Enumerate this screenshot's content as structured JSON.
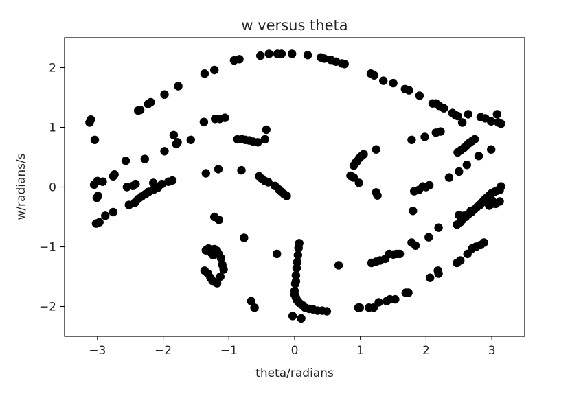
{
  "chart_data": {
    "type": "scatter",
    "title": "w versus theta",
    "xlabel": "theta/radians",
    "ylabel": "w/radians/s",
    "xlim": [
      -3.5,
      3.5
    ],
    "ylim": [
      -2.5,
      2.5
    ],
    "xticks": [
      -3,
      -2,
      -1,
      0,
      1,
      2,
      3
    ],
    "yticks": [
      -2,
      -1,
      0,
      1,
      2
    ],
    "xtick_labels": [
      "−3",
      "−2",
      "−1",
      "0",
      "1",
      "2",
      "3"
    ],
    "ytick_labels": [
      "−2",
      "−1",
      "0",
      "1",
      "2"
    ],
    "grid": false,
    "marker_color": "#000000",
    "series": [
      {
        "points": [
          [
            -3.12,
            1.08
          ],
          [
            -3.1,
            1.13
          ],
          [
            -3.04,
            0.79
          ],
          [
            -3.05,
            0.04
          ],
          [
            -3.0,
            0.1
          ],
          [
            -2.92,
            0.09
          ],
          [
            -3.01,
            -0.18
          ],
          [
            -2.99,
            -0.15
          ],
          [
            -3.02,
            -0.61
          ],
          [
            -2.97,
            -0.59
          ],
          [
            -2.88,
            -0.48
          ],
          [
            -2.76,
            -0.42
          ],
          [
            -2.74,
            0.21
          ],
          [
            -2.76,
            0.18
          ],
          [
            -2.57,
            0.44
          ],
          [
            -2.55,
            0.0
          ],
          [
            -2.46,
            0.02
          ],
          [
            -2.42,
            0.05
          ],
          [
            -2.52,
            -0.3
          ],
          [
            -2.43,
            -0.26
          ],
          [
            -2.38,
            -0.2
          ],
          [
            -2.33,
            -0.16
          ],
          [
            -2.27,
            -0.12
          ],
          [
            -2.22,
            -0.08
          ],
          [
            -2.15,
            -0.05
          ],
          [
            -2.08,
            -0.01
          ],
          [
            -2.28,
            0.47
          ],
          [
            -2.15,
            0.07
          ],
          [
            -2.02,
            0.05
          ],
          [
            -1.92,
            0.09
          ],
          [
            -1.86,
            0.11
          ],
          [
            -1.98,
            0.6
          ],
          [
            -2.38,
            1.28
          ],
          [
            -2.35,
            1.29
          ],
          [
            -2.23,
            1.39
          ],
          [
            -2.19,
            1.42
          ],
          [
            -1.98,
            1.55
          ],
          [
            -1.77,
            1.69
          ],
          [
            -1.84,
            0.87
          ],
          [
            -1.8,
            0.72
          ],
          [
            -1.78,
            0.75
          ],
          [
            -1.58,
            0.79
          ],
          [
            -1.38,
            1.09
          ],
          [
            -1.21,
            1.14
          ],
          [
            -1.14,
            1.14
          ],
          [
            -1.06,
            1.16
          ],
          [
            -1.37,
            1.9
          ],
          [
            -1.22,
            1.96
          ],
          [
            -0.92,
            2.12
          ],
          [
            -0.84,
            2.14
          ],
          [
            -0.52,
            2.2
          ],
          [
            -0.39,
            2.23
          ],
          [
            -0.26,
            2.23
          ],
          [
            -0.2,
            2.23
          ],
          [
            -0.04,
            2.23
          ],
          [
            -0.87,
            0.8
          ],
          [
            -0.8,
            0.8
          ],
          [
            -0.75,
            0.79
          ],
          [
            -0.69,
            0.78
          ],
          [
            -0.63,
            0.76
          ],
          [
            -0.56,
            0.75
          ],
          [
            -0.45,
            0.8
          ],
          [
            -0.43,
            0.96
          ],
          [
            -1.35,
            0.23
          ],
          [
            -1.16,
            0.3
          ],
          [
            -0.81,
            0.28
          ],
          [
            -0.54,
            0.18
          ],
          [
            -0.5,
            0.14
          ],
          [
            -0.45,
            0.1
          ],
          [
            -0.4,
            0.08
          ],
          [
            -0.3,
            0.02
          ],
          [
            -0.24,
            -0.04
          ],
          [
            -0.2,
            -0.08
          ],
          [
            -0.16,
            -0.12
          ],
          [
            -0.12,
            -0.15
          ],
          [
            -1.22,
            -0.5
          ],
          [
            -1.15,
            -0.55
          ],
          [
            -0.77,
            -0.85
          ],
          [
            -0.27,
            -1.12
          ],
          [
            -1.35,
            -1.06
          ],
          [
            -1.31,
            -1.03
          ],
          [
            -1.27,
            -1.1
          ],
          [
            -1.24,
            -1.14
          ],
          [
            -1.22,
            -1.04
          ],
          [
            -1.18,
            -1.07
          ],
          [
            -1.15,
            -1.13
          ],
          [
            -1.12,
            -1.19
          ],
          [
            -1.1,
            -1.3
          ],
          [
            -1.08,
            -1.38
          ],
          [
            -1.37,
            -1.4
          ],
          [
            -1.32,
            -1.45
          ],
          [
            -1.28,
            -1.52
          ],
          [
            -1.25,
            -1.57
          ],
          [
            -1.18,
            -1.61
          ],
          [
            -1.13,
            -1.5
          ],
          [
            -0.66,
            -1.91
          ],
          [
            -0.61,
            -2.02
          ],
          [
            0.07,
            -0.94
          ],
          [
            0.06,
            -1.02
          ],
          [
            0.05,
            -1.14
          ],
          [
            0.04,
            -1.26
          ],
          [
            0.03,
            -1.36
          ],
          [
            0.02,
            -1.48
          ],
          [
            0.02,
            -1.58
          ],
          [
            0.01,
            -1.62
          ],
          [
            0.0,
            -1.74
          ],
          [
            0.0,
            -1.8
          ],
          [
            0.02,
            -1.85
          ],
          [
            0.04,
            -1.9
          ],
          [
            0.07,
            -1.94
          ],
          [
            0.12,
            -1.98
          ],
          [
            0.16,
            -2.02
          ],
          [
            0.22,
            -2.04
          ],
          [
            0.28,
            -2.05
          ],
          [
            0.35,
            -2.07
          ],
          [
            0.42,
            -2.07
          ],
          [
            0.49,
            -2.08
          ],
          [
            -0.03,
            -2.16
          ],
          [
            0.1,
            -2.2
          ],
          [
            0.67,
            -1.31
          ],
          [
            0.97,
            -2.02
          ],
          [
            0.99,
            -2.02
          ],
          [
            1.13,
            -2.02
          ],
          [
            1.2,
            -2.02
          ],
          [
            1.28,
            -1.93
          ],
          [
            1.4,
            -1.91
          ],
          [
            1.45,
            -1.88
          ],
          [
            1.53,
            -1.88
          ],
          [
            1.69,
            -1.77
          ],
          [
            1.73,
            -1.77
          ],
          [
            2.06,
            -1.52
          ],
          [
            2.19,
            -1.45
          ],
          [
            2.18,
            -1.4
          ],
          [
            1.17,
            -1.27
          ],
          [
            1.24,
            -1.25
          ],
          [
            1.3,
            -1.23
          ],
          [
            1.38,
            -1.2
          ],
          [
            1.44,
            -1.12
          ],
          [
            1.5,
            -1.13
          ],
          [
            1.55,
            -1.12
          ],
          [
            1.6,
            -1.12
          ],
          [
            1.78,
            -0.93
          ],
          [
            1.84,
            -0.98
          ],
          [
            2.04,
            -0.84
          ],
          [
            2.19,
            -0.68
          ],
          [
            2.47,
            -1.27
          ],
          [
            2.52,
            -1.23
          ],
          [
            2.63,
            -1.12
          ],
          [
            2.7,
            -1.03
          ],
          [
            2.76,
            -1.0
          ],
          [
            2.83,
            -0.97
          ],
          [
            2.88,
            -0.93
          ],
          [
            1.8,
            -0.4
          ],
          [
            2.47,
            -0.63
          ],
          [
            2.52,
            -0.59
          ],
          [
            2.55,
            -0.55
          ],
          [
            2.6,
            -0.5
          ],
          [
            2.64,
            -0.46
          ],
          [
            2.69,
            -0.42
          ],
          [
            2.73,
            -0.38
          ],
          [
            2.77,
            -0.34
          ],
          [
            2.81,
            -0.3
          ],
          [
            2.85,
            -0.26
          ],
          [
            2.88,
            -0.22
          ],
          [
            2.92,
            -0.18
          ],
          [
            2.96,
            -0.14
          ],
          [
            3.0,
            -0.1
          ],
          [
            3.04,
            -0.08
          ],
          [
            3.08,
            -0.06
          ],
          [
            3.12,
            -0.05
          ],
          [
            2.5,
            -0.47
          ],
          [
            2.58,
            -0.48
          ],
          [
            2.68,
            -0.4
          ],
          [
            2.82,
            -0.3
          ],
          [
            2.96,
            -0.31
          ],
          [
            3.0,
            -0.28
          ],
          [
            3.06,
            -0.28
          ],
          [
            3.12,
            -0.24
          ],
          [
            3.14,
            0.01
          ],
          [
            3.0,
            -0.22
          ],
          [
            0.85,
            0.19
          ],
          [
            0.9,
            0.16
          ],
          [
            0.98,
            0.07
          ],
          [
            0.9,
            0.36
          ],
          [
            0.93,
            0.41
          ],
          [
            0.95,
            0.43
          ],
          [
            0.98,
            0.48
          ],
          [
            1.02,
            0.52
          ],
          [
            1.05,
            0.55
          ],
          [
            1.24,
            -0.09
          ],
          [
            1.26,
            -0.14
          ],
          [
            1.24,
            0.63
          ],
          [
            1.82,
            -0.07
          ],
          [
            1.89,
            -0.05
          ],
          [
            1.95,
            0.01
          ],
          [
            2.0,
            0.0
          ],
          [
            2.05,
            0.03
          ],
          [
            2.35,
            0.16
          ],
          [
            2.5,
            0.26
          ],
          [
            2.62,
            0.37
          ],
          [
            2.8,
            0.52
          ],
          [
            2.99,
            0.63
          ],
          [
            2.48,
            0.58
          ],
          [
            2.53,
            0.62
          ],
          [
            2.58,
            0.66
          ],
          [
            2.62,
            0.7
          ],
          [
            2.66,
            0.74
          ],
          [
            2.7,
            0.77
          ],
          [
            2.74,
            0.8
          ],
          [
            1.78,
            0.79
          ],
          [
            1.98,
            0.84
          ],
          [
            2.15,
            0.91
          ],
          [
            2.22,
            0.93
          ],
          [
            1.16,
            1.9
          ],
          [
            1.21,
            1.87
          ],
          [
            1.35,
            1.78
          ],
          [
            1.5,
            1.74
          ],
          [
            1.68,
            1.64
          ],
          [
            1.74,
            1.62
          ],
          [
            1.9,
            1.53
          ],
          [
            2.1,
            1.4
          ],
          [
            2.15,
            1.4
          ],
          [
            2.2,
            1.36
          ],
          [
            2.27,
            1.32
          ],
          [
            2.4,
            1.24
          ],
          [
            2.45,
            1.2
          ],
          [
            2.48,
            1.19
          ],
          [
            2.55,
            1.08
          ],
          [
            2.64,
            1.22
          ],
          [
            2.83,
            1.17
          ],
          [
            2.9,
            1.15
          ],
          [
            2.99,
            1.1
          ],
          [
            3.08,
            1.22
          ],
          [
            3.1,
            1.08
          ],
          [
            3.14,
            1.06
          ],
          [
            0.2,
            2.21
          ],
          [
            0.4,
            2.17
          ],
          [
            0.45,
            2.15
          ],
          [
            0.55,
            2.13
          ],
          [
            0.63,
            2.1
          ],
          [
            0.72,
            2.07
          ],
          [
            0.76,
            2.06
          ]
        ]
      }
    ]
  }
}
